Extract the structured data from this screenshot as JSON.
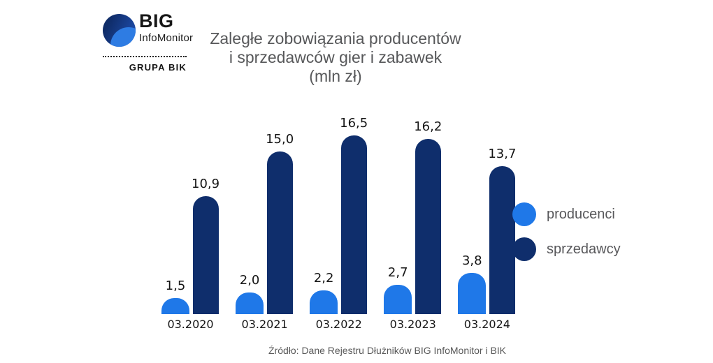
{
  "logo": {
    "name_top": "BIG",
    "name_bottom": "InfoMonitor",
    "group_label": "GRUPA BIK"
  },
  "title": {
    "line1": "Zaległe zobowiązania producentów",
    "line2": "i sprzedawców gier i zabawek",
    "line3": "(mln zł)"
  },
  "chart_data": {
    "type": "bar",
    "title": "Zaległe zobowiązania producentów i sprzedawców gier i zabawek (mln zł)",
    "categories": [
      "03.2020",
      "03.2021",
      "03.2022",
      "03.2023",
      "03.2024"
    ],
    "series": [
      {
        "name": "producenci",
        "color": "#1f78e8",
        "values": [
          1.5,
          2.0,
          2.2,
          2.7,
          3.8
        ],
        "labels": [
          "1,5",
          "2,0",
          "2,2",
          "2,7",
          "3,8"
        ]
      },
      {
        "name": "sprzedawcy",
        "color": "#0f2e6c",
        "values": [
          10.9,
          15.0,
          16.5,
          16.2,
          13.7
        ],
        "labels": [
          "10,9",
          "15,0",
          "16,5",
          "16,2",
          "13,7"
        ]
      }
    ],
    "ylim": [
      0,
      17.5
    ],
    "grid": false,
    "legend_position": "right",
    "value_labels_shown": true
  },
  "legend": {
    "items": [
      {
        "label": "producenci",
        "color": "#1f78e8"
      },
      {
        "label": "sprzedawcy",
        "color": "#0f2e6c"
      }
    ]
  },
  "source": "Źródło: Dane Rejestru Dłużników BIG InfoMonitor i BIK"
}
